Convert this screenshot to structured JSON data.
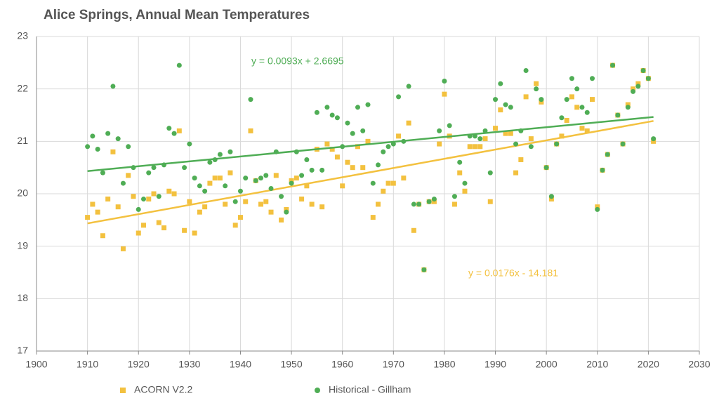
{
  "chart_data": {
    "type": "scatter",
    "title": "Alice Springs, Annual Mean Temperatures",
    "xlim": [
      1900,
      2030
    ],
    "xticks": [
      1900,
      1910,
      1920,
      1930,
      1940,
      1950,
      1960,
      1970,
      1980,
      1990,
      2000,
      2010,
      2020,
      2030
    ],
    "ylim": [
      17,
      23
    ],
    "yticks": [
      17,
      18,
      19,
      20,
      21,
      22,
      23
    ],
    "grid": true,
    "legend": "bottom",
    "x": [
      1910,
      1911,
      1912,
      1913,
      1914,
      1915,
      1916,
      1917,
      1918,
      1919,
      1920,
      1921,
      1922,
      1923,
      1924,
      1925,
      1926,
      1927,
      1928,
      1929,
      1930,
      1931,
      1932,
      1933,
      1934,
      1935,
      1936,
      1937,
      1938,
      1939,
      1940,
      1941,
      1942,
      1943,
      1944,
      1945,
      1946,
      1947,
      1948,
      1949,
      1950,
      1951,
      1952,
      1953,
      1954,
      1955,
      1956,
      1957,
      1958,
      1959,
      1960,
      1961,
      1962,
      1963,
      1964,
      1965,
      1966,
      1967,
      1968,
      1969,
      1970,
      1971,
      1972,
      1973,
      1974,
      1975,
      1976,
      1977,
      1978,
      1979,
      1980,
      1981,
      1982,
      1983,
      1984,
      1985,
      1986,
      1987,
      1988,
      1989,
      1990,
      1991,
      1992,
      1993,
      1994,
      1995,
      1996,
      1997,
      1998,
      1999,
      2000,
      2001,
      2002,
      2003,
      2004,
      2005,
      2006,
      2007,
      2008,
      2009,
      2010,
      2011,
      2012,
      2013,
      2014,
      2015,
      2016,
      2017,
      2018,
      2019,
      2020,
      2021
    ],
    "series": [
      {
        "name": "ACORN V2.2",
        "color": "#f3c13f",
        "marker": "square",
        "trendline": {
          "label": "y = 0.0176x - 14.181",
          "slope": 0.0176,
          "intercept": -14.181
        },
        "values": [
          19.55,
          19.8,
          19.65,
          19.2,
          19.9,
          20.8,
          19.75,
          18.95,
          20.35,
          19.95,
          19.25,
          19.4,
          19.9,
          20.0,
          19.45,
          19.35,
          20.05,
          20.0,
          21.2,
          19.3,
          19.85,
          19.25,
          19.65,
          19.75,
          20.2,
          20.3,
          20.3,
          19.8,
          20.4,
          19.4,
          19.55,
          19.85,
          21.2,
          20.25,
          19.8,
          19.85,
          19.65,
          20.35,
          19.5,
          19.7,
          20.25,
          20.3,
          19.9,
          20.15,
          19.8,
          20.85,
          19.75,
          20.95,
          20.85,
          20.7,
          20.15,
          20.6,
          20.5,
          20.9,
          20.5,
          21.0,
          19.55,
          19.8,
          20.05,
          20.2,
          20.2,
          21.1,
          20.3,
          21.35,
          19.3,
          19.8,
          18.55,
          19.85,
          19.85,
          20.95,
          21.9,
          21.1,
          19.8,
          20.4,
          20.05,
          20.9,
          20.9,
          20.9,
          21.05,
          19.85,
          21.25,
          21.6,
          21.15,
          21.15,
          20.4,
          20.65,
          21.85,
          21.05,
          22.1,
          21.75,
          20.5,
          19.9,
          20.95,
          21.1,
          21.4,
          21.85,
          21.65,
          21.25,
          21.2,
          21.8,
          19.75,
          20.45,
          20.75,
          22.45,
          21.5,
          20.95,
          21.7,
          22.0,
          22.1,
          22.35,
          22.2,
          21.0
        ]
      },
      {
        "name": "Historical - Gillham",
        "color": "#4fad55",
        "marker": "circle",
        "trendline": {
          "label": "y = 0.0093x + 2.6695",
          "slope": 0.0093,
          "intercept": 2.6695
        },
        "values": [
          20.9,
          21.1,
          20.85,
          20.4,
          21.15,
          22.05,
          21.05,
          20.2,
          20.9,
          20.5,
          19.7,
          19.9,
          20.4,
          20.5,
          19.95,
          20.55,
          21.25,
          21.15,
          22.45,
          20.5,
          20.95,
          20.3,
          20.15,
          20.05,
          20.6,
          20.65,
          20.75,
          20.15,
          20.8,
          19.85,
          20.05,
          20.3,
          21.8,
          20.25,
          20.3,
          20.35,
          20.1,
          20.8,
          19.95,
          19.65,
          20.2,
          20.8,
          20.35,
          20.65,
          20.45,
          21.55,
          20.45,
          21.65,
          21.5,
          21.45,
          20.9,
          21.35,
          21.15,
          21.65,
          21.2,
          21.7,
          20.2,
          20.55,
          20.8,
          20.9,
          20.95,
          21.85,
          21.0,
          22.05,
          19.8,
          19.8,
          18.55,
          19.85,
          19.9,
          21.2,
          22.15,
          21.3,
          19.95,
          20.6,
          20.2,
          21.1,
          21.1,
          21.05,
          21.2,
          20.4,
          21.8,
          22.1,
          21.7,
          21.65,
          20.95,
          21.2,
          22.35,
          20.9,
          22.0,
          21.8,
          20.5,
          19.95,
          20.95,
          21.45,
          21.8,
          22.2,
          22.0,
          21.65,
          21.55,
          22.2,
          19.7,
          20.45,
          20.75,
          22.45,
          21.5,
          20.95,
          21.65,
          21.95,
          22.05,
          22.35,
          22.2,
          21.05
        ]
      }
    ]
  }
}
